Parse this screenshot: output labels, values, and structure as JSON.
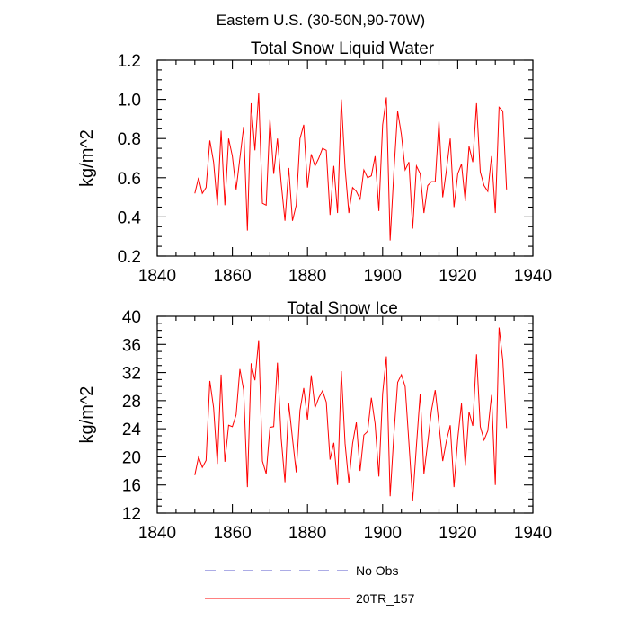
{
  "figure": {
    "suptitle": "Eastern U.S. (30-50N,90-70W)"
  },
  "legend": {
    "entries": [
      {
        "label": "No Obs",
        "color": "#5a5acd",
        "style": "dashed"
      },
      {
        "label": "20TR_157",
        "color": "#ff0000",
        "style": "solid"
      }
    ]
  },
  "chart_data": [
    {
      "type": "line",
      "title": "Total Snow Liquid Water",
      "xlabel": "",
      "ylabel": "kg/m^2",
      "xlim": [
        1840,
        1940
      ],
      "ylim": [
        0.2,
        1.2
      ],
      "xticks": [
        1840,
        1860,
        1880,
        1900,
        1920,
        1940
      ],
      "yticks": [
        0.2,
        0.4,
        0.6,
        0.8,
        1.0,
        1.2
      ],
      "xtick_labels": [
        "1840",
        "1860",
        "1880",
        "1900",
        "1920",
        "1940"
      ],
      "ytick_labels": [
        "0.2",
        "0.4",
        "0.6",
        "0.8",
        "1.0",
        "1.2"
      ],
      "series": [
        {
          "name": "20TR_157",
          "color": "#ff0000",
          "x_start": 1850,
          "values": [
            0.52,
            0.6,
            0.52,
            0.55,
            0.79,
            0.68,
            0.46,
            0.84,
            0.46,
            0.8,
            0.71,
            0.54,
            0.7,
            0.86,
            0.33,
            0.98,
            0.74,
            1.03,
            0.47,
            0.46,
            0.9,
            0.62,
            0.8,
            0.57,
            0.38,
            0.65,
            0.38,
            0.46,
            0.8,
            0.87,
            0.55,
            0.72,
            0.66,
            0.7,
            0.75,
            0.74,
            0.41,
            0.66,
            0.42,
            1.0,
            0.65,
            0.42,
            0.55,
            0.53,
            0.49,
            0.64,
            0.6,
            0.61,
            0.71,
            0.43,
            0.87,
            1.01,
            0.28,
            0.63,
            0.94,
            0.82,
            0.64,
            0.68,
            0.34,
            0.66,
            0.62,
            0.42,
            0.56,
            0.58,
            0.58,
            0.89,
            0.5,
            0.64,
            0.8,
            0.45,
            0.62,
            0.67,
            0.48,
            0.76,
            0.68,
            0.98,
            0.63,
            0.56,
            0.53,
            0.71,
            0.42,
            0.96,
            0.94,
            0.54
          ]
        }
      ]
    },
    {
      "type": "line",
      "title": "Total Snow Ice",
      "xlabel": "",
      "ylabel": "kg/m^2",
      "xlim": [
        1840,
        1940
      ],
      "ylim": [
        12,
        40
      ],
      "xticks": [
        1840,
        1860,
        1880,
        1900,
        1920,
        1940
      ],
      "yticks": [
        12,
        16,
        20,
        24,
        28,
        32,
        36,
        40
      ],
      "xtick_labels": [
        "1840",
        "1860",
        "1880",
        "1900",
        "1920",
        "1940"
      ],
      "ytick_labels": [
        "12",
        "16",
        "20",
        "24",
        "28",
        "32",
        "36",
        "40"
      ],
      "series": [
        {
          "name": "20TR_157",
          "color": "#ff0000",
          "x_start": 1850,
          "values": [
            17.4,
            20.0,
            18.5,
            19.5,
            30.8,
            27.0,
            19.0,
            31.7,
            19.3,
            24.5,
            24.3,
            26.0,
            32.5,
            29.5,
            15.7,
            33.3,
            30.9,
            36.6,
            19.4,
            17.6,
            24.2,
            24.3,
            33.4,
            22.6,
            16.4,
            27.6,
            22.6,
            17.8,
            26.6,
            29.8,
            25.3,
            31.6,
            27.0,
            28.4,
            29.4,
            27.8,
            19.6,
            22.0,
            16.0,
            32.2,
            21.9,
            16.3,
            21.9,
            24.9,
            18.0,
            23.1,
            23.6,
            28.4,
            24.7,
            17.2,
            29.0,
            34.3,
            14.4,
            23.2,
            30.6,
            31.7,
            30.0,
            22.0,
            13.8,
            21.6,
            29.0,
            17.6,
            22.0,
            26.6,
            29.5,
            24.6,
            19.4,
            22.3,
            24.5,
            15.7,
            22.6,
            27.6,
            18.7,
            26.4,
            24.4,
            34.6,
            24.3,
            22.4,
            23.7,
            28.8,
            16.0,
            38.4,
            33.7,
            24.1
          ]
        }
      ]
    }
  ]
}
